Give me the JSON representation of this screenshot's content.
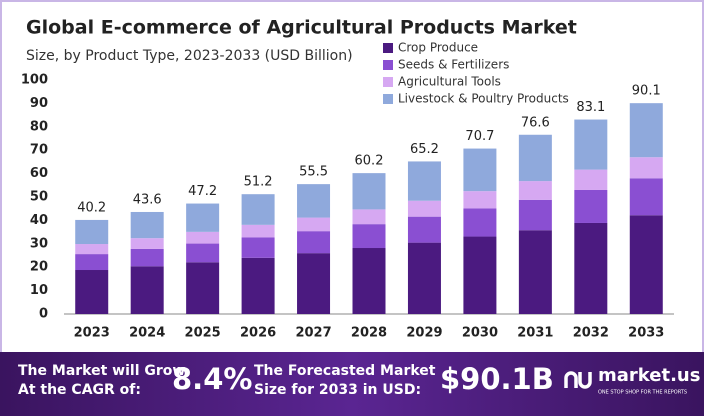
{
  "chart_data": {
    "type": "stacked_bar",
    "title": "Global E-commerce of Agricultural Products Market",
    "subtitle": "Size, by Product Type, 2023-2033 (USD Billion)",
    "categories": [
      "2023",
      "2024",
      "2025",
      "2026",
      "2027",
      "2028",
      "2029",
      "2030",
      "2031",
      "2032",
      "2033"
    ],
    "series": [
      {
        "name": "Crop Produce",
        "color": "#4b1a80",
        "values": [
          18.8,
          20.4,
          22.1,
          24.0,
          26.0,
          28.2,
          30.5,
          33.1,
          35.8,
          38.9,
          42.2
        ]
      },
      {
        "name": "Seeds & Fertilizers",
        "color": "#8a4fd2",
        "values": [
          6.8,
          7.4,
          8.0,
          8.7,
          9.4,
          10.2,
          11.1,
          12.0,
          13.0,
          14.1,
          15.8
        ]
      },
      {
        "name": "Agricultural Tools",
        "color": "#d6a8f2",
        "values": [
          4.3,
          4.6,
          5.0,
          5.4,
          5.8,
          6.3,
          6.8,
          7.4,
          8.0,
          8.7,
          9.0
        ]
      },
      {
        "name": "Livestock & Poultry Products",
        "color": "#8fa9dc",
        "values": [
          10.3,
          11.2,
          12.1,
          13.1,
          14.3,
          15.5,
          16.8,
          18.2,
          19.8,
          21.4,
          23.1
        ]
      }
    ],
    "totals": [
      40.2,
      43.6,
      47.2,
      51.2,
      55.5,
      60.2,
      65.2,
      70.7,
      76.6,
      83.1,
      90.1
    ],
    "ylim": [
      0,
      100
    ],
    "yticks": [
      0,
      10,
      20,
      30,
      40,
      50,
      60,
      70,
      80,
      90,
      100
    ],
    "grid": false
  },
  "footer": {
    "cagr_text": [
      "The Market will Grow",
      "At the CAGR of:"
    ],
    "cagr_value": "8.4%",
    "forecast_text": [
      "The Forecasted Market",
      "Size for 2033 in USD:"
    ],
    "forecast_value": "$90.1B",
    "brand": "market.us",
    "tagline": "ONE STOP SHOP FOR THE REPORTS"
  }
}
